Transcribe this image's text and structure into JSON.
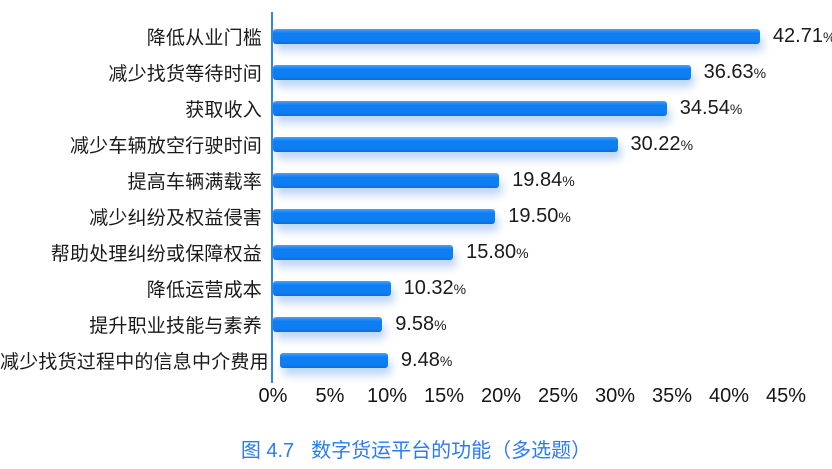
{
  "chart_data": {
    "type": "bar",
    "orientation": "horizontal",
    "categories": [
      "降低从业门槛",
      "减少找货等待时间",
      "获取收入",
      "减少车辆放空行驶时间",
      "提高车辆满载率",
      "减少纠纷及权益侵害",
      "帮助处理纠纷或保障权益",
      "降低运营成本",
      "提升职业技能与素养",
      "减少找货过程中的信息中介费用"
    ],
    "values": [
      42.71,
      36.63,
      34.54,
      30.22,
      19.84,
      19.5,
      15.8,
      10.32,
      9.58,
      9.48
    ],
    "value_labels": [
      "42.71",
      "36.63",
      "34.54",
      "30.22",
      "19.84",
      "19.50",
      "15.80",
      "10.32",
      "9.58",
      "9.48"
    ],
    "unit": "%",
    "x_axis": {
      "ticks": [
        "0%",
        "5%",
        "10%",
        "15%",
        "20%",
        "25%",
        "30%",
        "35%",
        "40%",
        "45%"
      ],
      "tick_values": [
        0,
        5,
        10,
        15,
        20,
        25,
        30,
        35,
        40,
        45
      ],
      "range": [
        0,
        45
      ]
    },
    "caption": {
      "prefix": "图 4.7",
      "text": "数字货运平台的功能（多选题）"
    },
    "legend": "none",
    "grid": "off",
    "colors": {
      "bar": "#0e7ef2",
      "bar_shadow": "rgba(96,152,230,0.42)",
      "axis": "#2e86f4",
      "caption": "#2b7bf3",
      "text": "#1a1a1a"
    }
  }
}
